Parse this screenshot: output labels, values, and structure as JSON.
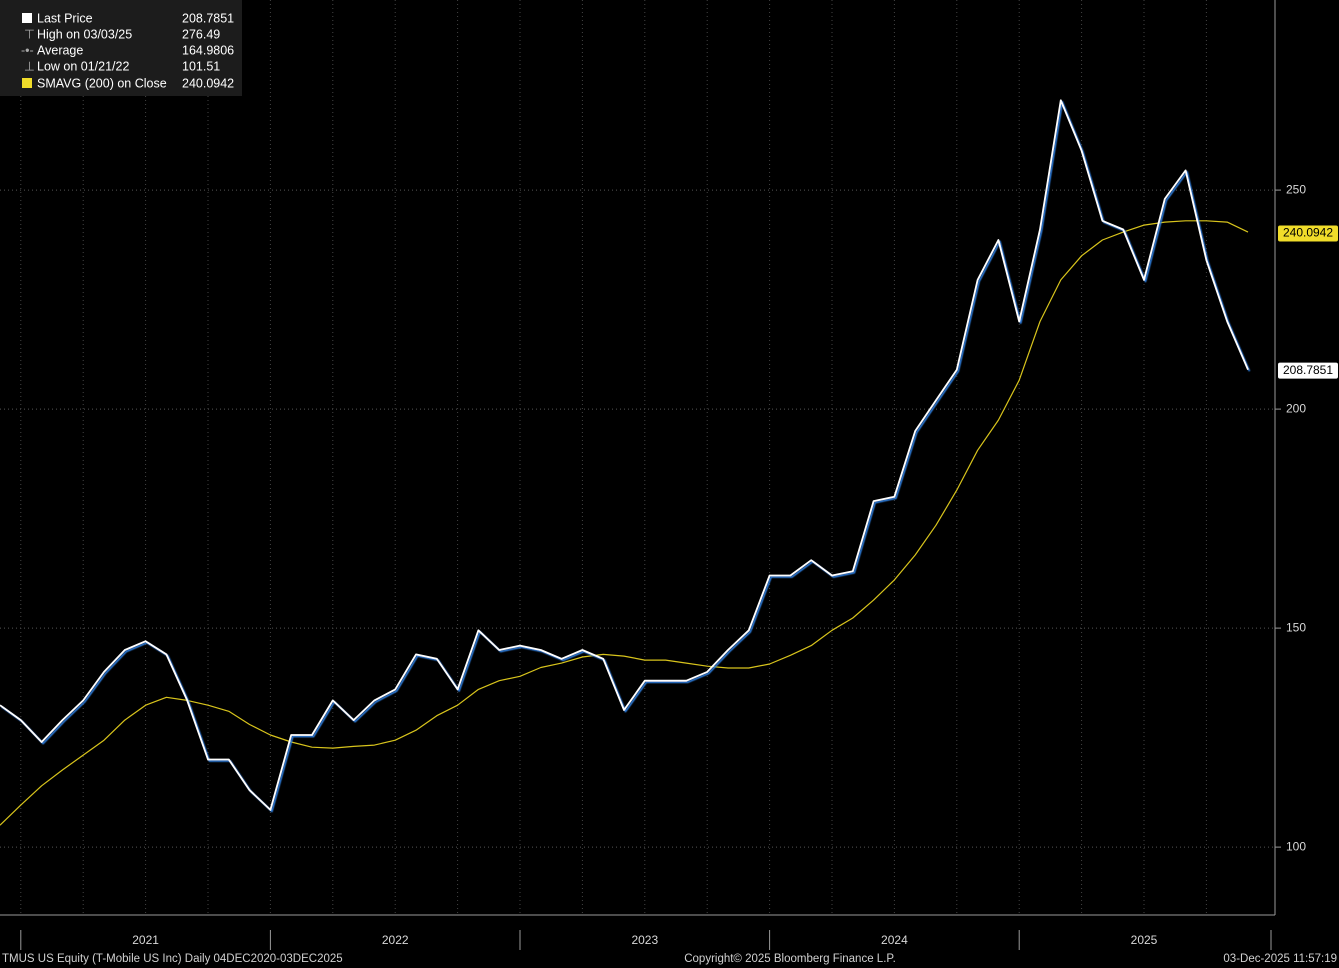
{
  "chart_data": {
    "type": "line",
    "categories": [
      null,
      null,
      null,
      null,
      null,
      null,
      null,
      "2021",
      null,
      null,
      null,
      null,
      null,
      null,
      null,
      null,
      null,
      null,
      null,
      "2022",
      null,
      null,
      null,
      null,
      null,
      null,
      null,
      null,
      null,
      null,
      null,
      "2023",
      null,
      null,
      null,
      null,
      null,
      null,
      null,
      null,
      null,
      null,
      null,
      "2024",
      null,
      null,
      null,
      null,
      null,
      null,
      null,
      null,
      null,
      null,
      null,
      "2025",
      null,
      null,
      null,
      null,
      null
    ],
    "series": [
      {
        "name": "Last Price",
        "color": "#ffffff",
        "last": 208.7851,
        "values": [
          132.4,
          129,
          124,
          129,
          133.5,
          140,
          145,
          147,
          144,
          133.5,
          120,
          120,
          113,
          108.5,
          125.6,
          125.6,
          133.5,
          129,
          133.5,
          136,
          144,
          143,
          136,
          149.5,
          145,
          146,
          145,
          143,
          145,
          143,
          131.3,
          138,
          138,
          138,
          140,
          145,
          149.5,
          162,
          162,
          165.5,
          162,
          163,
          179,
          180,
          195,
          202,
          209,
          229.5,
          238.6,
          220,
          241,
          270.5,
          259,
          243,
          241,
          229.5,
          248,
          254.5,
          234,
          220,
          209
        ]
      },
      {
        "name": "SMAVG (200)  on Close",
        "color": "#d8c41c",
        "last": 240.0942,
        "values": [
          105,
          109.6,
          114,
          117.6,
          121,
          124.4,
          129,
          132.4,
          134.2,
          133.5,
          132.4,
          131,
          128,
          125.6,
          124,
          122.8,
          122.6,
          123,
          123.3,
          124.4,
          126.7,
          130,
          132.4,
          136,
          138,
          139,
          141,
          142,
          143.4,
          144,
          143.6,
          142.7,
          142.7,
          142,
          141.3,
          140.9,
          140.9,
          141.8,
          143.8,
          146,
          149.5,
          152.3,
          156.4,
          161,
          166.7,
          173.5,
          181.5,
          190.6,
          197.5,
          206.6,
          220,
          229.5,
          235,
          238.6,
          240.4,
          242,
          242.7,
          243,
          243,
          242.7,
          240.4
        ]
      }
    ],
    "stats": [
      {
        "label": "High on 03/03/25",
        "value": 276.49
      },
      {
        "label": "Average",
        "value": 164.9806
      },
      {
        "label": "Low on 01/21/22",
        "value": 101.51
      }
    ],
    "ylim": [
      84.5,
      293.4
    ],
    "yticks": [
      100,
      150,
      200,
      250
    ],
    "grid": true,
    "footer": {
      "left": "TMUS US Equity (T-Mobile US Inc) Daily 04DEC2020-03DEC2025",
      "center": "Copyright© 2025 Bloomberg Finance L.P.",
      "right": "03-Dec-2025 11:57:19"
    }
  }
}
